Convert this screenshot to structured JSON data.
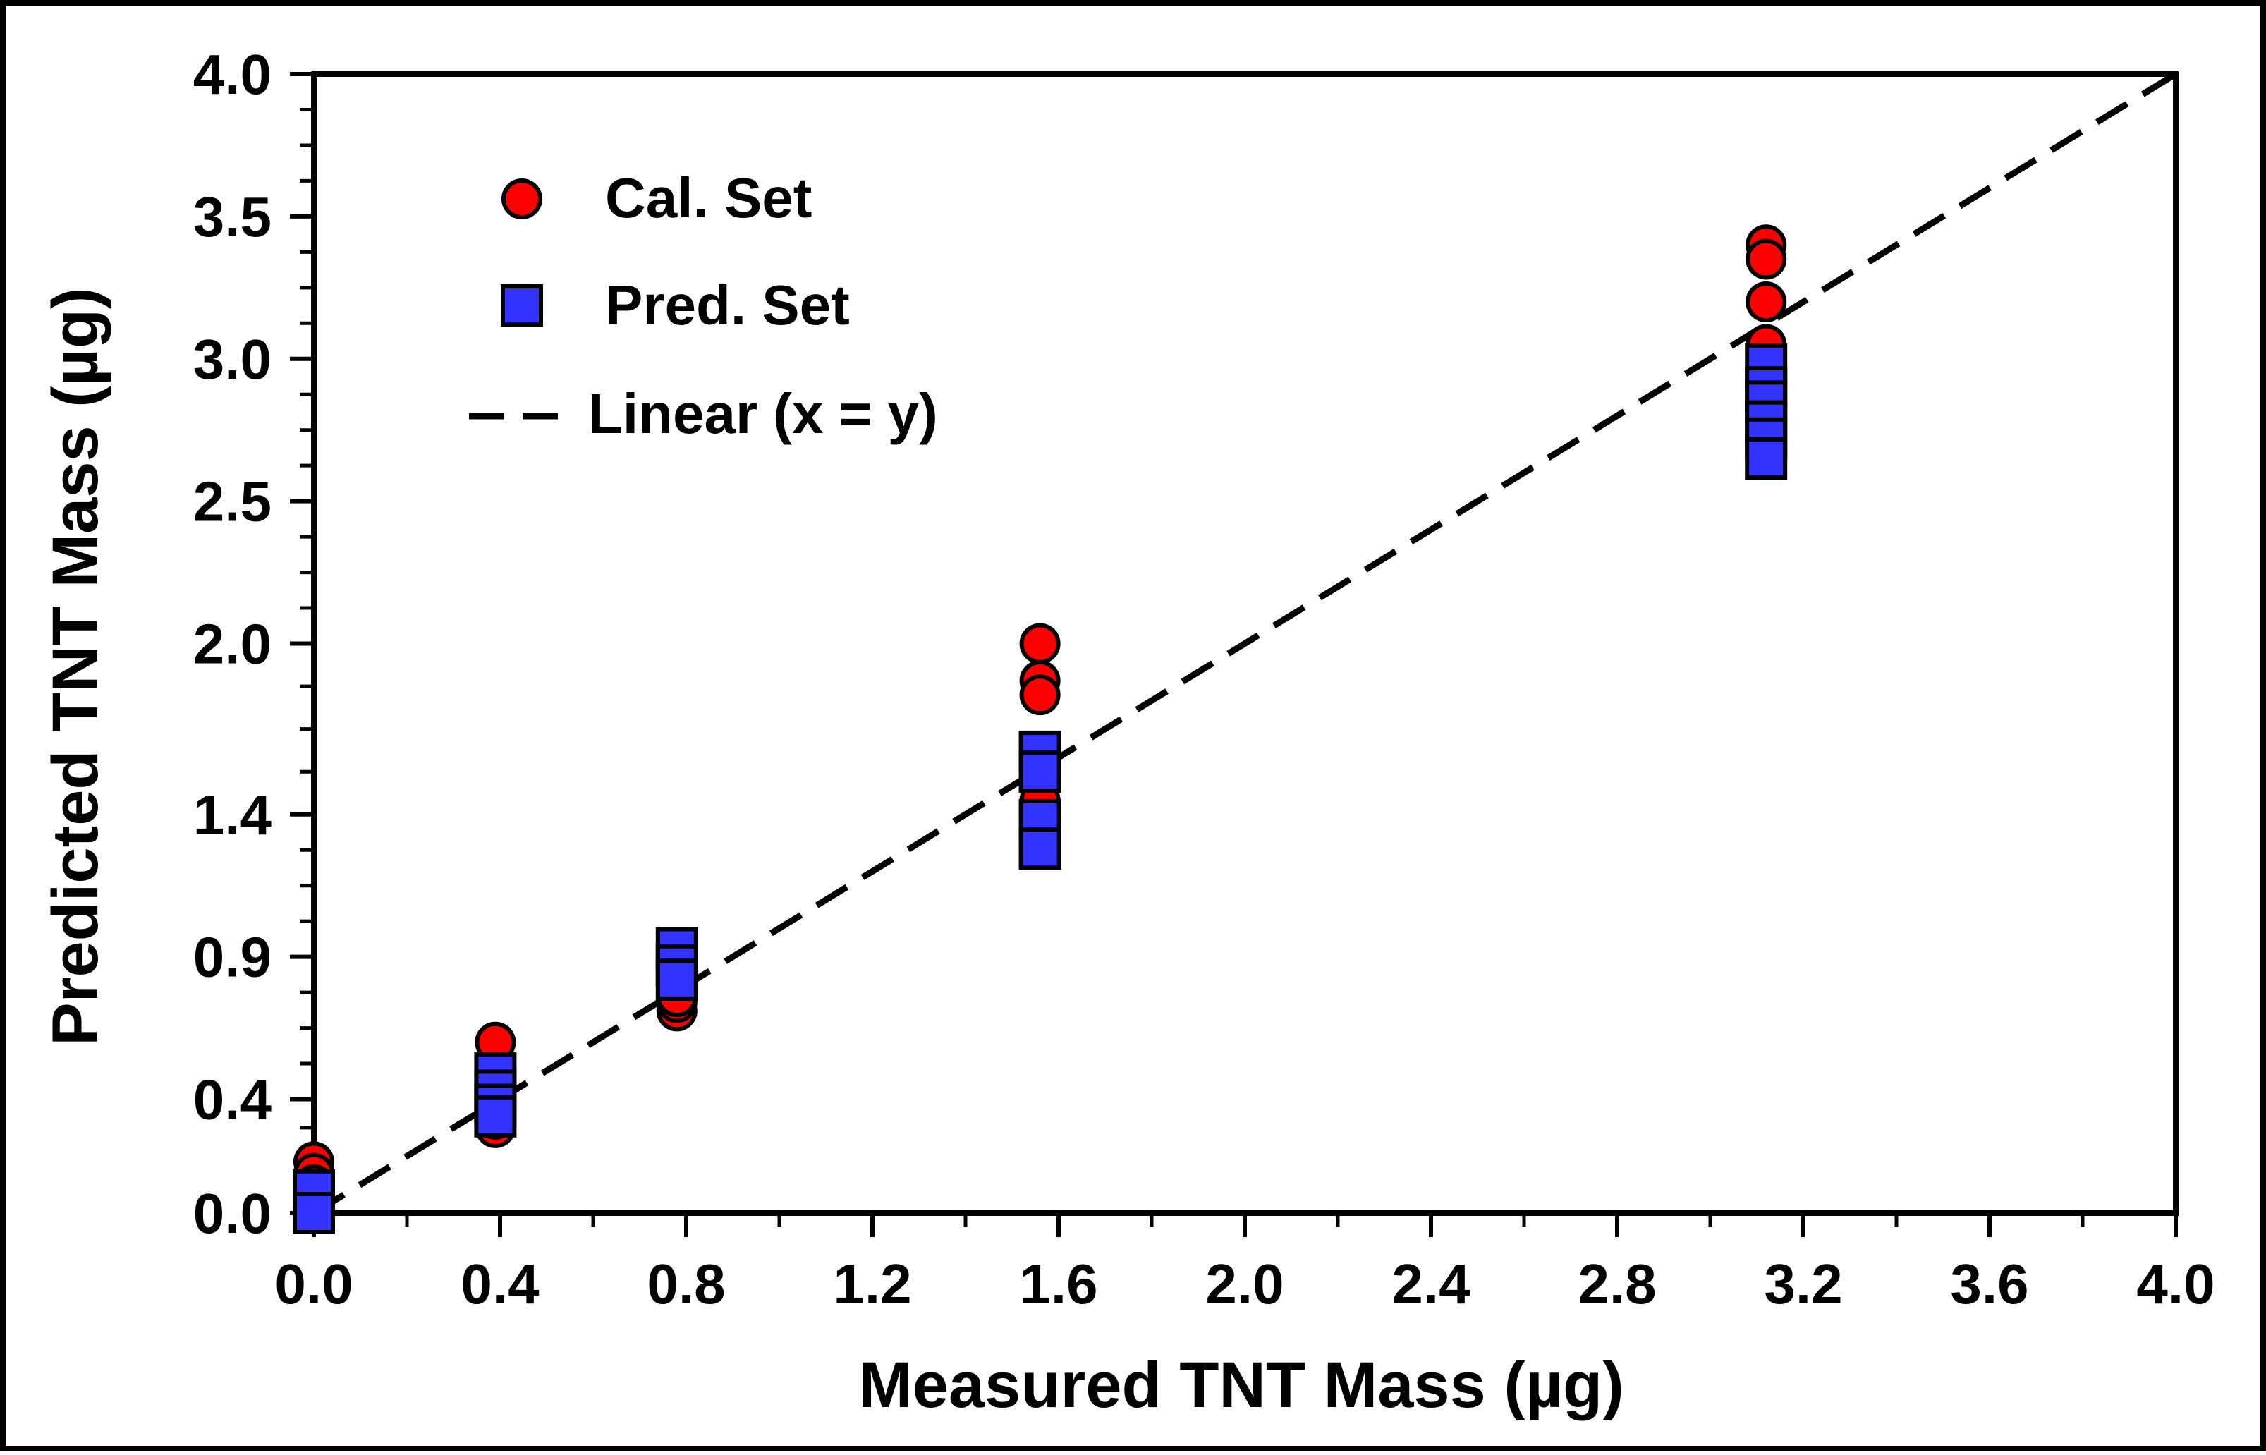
{
  "chart_data": {
    "type": "scatter",
    "title": "",
    "xlabel": "Measured TNT Mass (µg)",
    "ylabel": "Predicted TNT Mass (µg)",
    "xlim": [
      0.0,
      4.0
    ],
    "ylim": [
      0.0,
      4.0
    ],
    "x_ticks": [
      0.0,
      0.4,
      0.8,
      1.2,
      1.6,
      2.0,
      2.4,
      2.8,
      3.2,
      3.6,
      4.0
    ],
    "x_tick_labels": [
      "0.0",
      "0.4",
      "0.8",
      "1.2",
      "1.6",
      "2.0",
      "2.4",
      "2.8",
      "3.2",
      "3.6",
      "4.0"
    ],
    "y_ticks": [
      0.0,
      0.4,
      0.9,
      1.4,
      2.0,
      2.5,
      3.0,
      3.5,
      4.0
    ],
    "y_tick_labels": [
      "0.0",
      "0.4",
      "0.9",
      "1.4",
      "2.0",
      "2.5",
      "3.0",
      "3.5",
      "4.0"
    ],
    "grid": false,
    "legend_position": "top-left",
    "colors": {
      "cal": "#ff0000",
      "pred": "#3333ff",
      "marker_edge": "#000000",
      "line": "#000000"
    },
    "series": [
      {
        "name": "Cal. Set",
        "marker": "circle",
        "points": [
          {
            "x": 0.0,
            "y": 0.18
          },
          {
            "x": 0.0,
            "y": 0.14
          },
          {
            "x": 0.0,
            "y": 0.1
          },
          {
            "x": 0.39,
            "y": 0.6
          },
          {
            "x": 0.39,
            "y": 0.3
          },
          {
            "x": 0.39,
            "y": 0.33
          },
          {
            "x": 0.39,
            "y": 0.45
          },
          {
            "x": 0.78,
            "y": 0.71
          },
          {
            "x": 0.78,
            "y": 0.74
          },
          {
            "x": 0.78,
            "y": 0.76
          },
          {
            "x": 1.56,
            "y": 2.0
          },
          {
            "x": 1.56,
            "y": 1.87
          },
          {
            "x": 1.56,
            "y": 1.82
          },
          {
            "x": 1.56,
            "y": 1.45
          },
          {
            "x": 3.12,
            "y": 3.4
          },
          {
            "x": 3.12,
            "y": 3.35
          },
          {
            "x": 3.12,
            "y": 3.2
          },
          {
            "x": 3.12,
            "y": 3.05
          }
        ]
      },
      {
        "name": "Pred. Set",
        "marker": "square",
        "points": [
          {
            "x": 0.0,
            "y": 0.08
          },
          {
            "x": 0.0,
            "y": 0.0
          },
          {
            "x": 0.39,
            "y": 0.49
          },
          {
            "x": 0.39,
            "y": 0.43
          },
          {
            "x": 0.39,
            "y": 0.38
          },
          {
            "x": 0.39,
            "y": 0.34
          },
          {
            "x": 0.78,
            "y": 0.93
          },
          {
            "x": 0.78,
            "y": 0.87
          },
          {
            "x": 0.78,
            "y": 0.82
          },
          {
            "x": 1.56,
            "y": 1.62
          },
          {
            "x": 1.56,
            "y": 1.55
          },
          {
            "x": 1.56,
            "y": 1.38
          },
          {
            "x": 1.56,
            "y": 1.28
          },
          {
            "x": 3.12,
            "y": 2.98
          },
          {
            "x": 3.12,
            "y": 2.9
          },
          {
            "x": 3.12,
            "y": 2.85
          },
          {
            "x": 3.12,
            "y": 2.78
          },
          {
            "x": 3.12,
            "y": 2.72
          },
          {
            "x": 3.12,
            "y": 2.65
          }
        ]
      }
    ],
    "reference_line": {
      "name": "Linear (x = y)",
      "style": "dashed",
      "from": [
        0.0,
        0.0
      ],
      "to": [
        4.0,
        4.0
      ]
    }
  }
}
